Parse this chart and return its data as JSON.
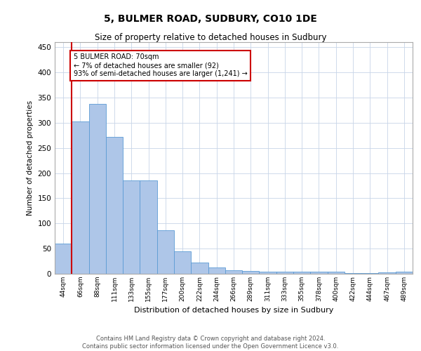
{
  "title": "5, BULMER ROAD, SUDBURY, CO10 1DE",
  "subtitle": "Size of property relative to detached houses in Sudbury",
  "xlabel": "Distribution of detached houses by size in Sudbury",
  "ylabel": "Number of detached properties",
  "categories": [
    "44sqm",
    "66sqm",
    "88sqm",
    "111sqm",
    "133sqm",
    "155sqm",
    "177sqm",
    "200sqm",
    "222sqm",
    "244sqm",
    "266sqm",
    "289sqm",
    "311sqm",
    "333sqm",
    "355sqm",
    "378sqm",
    "400sqm",
    "422sqm",
    "444sqm",
    "467sqm",
    "489sqm"
  ],
  "values": [
    60,
    302,
    338,
    272,
    185,
    185,
    87,
    45,
    22,
    12,
    7,
    5,
    4,
    4,
    4,
    4,
    4,
    1,
    1,
    3,
    4
  ],
  "bar_color": "#aec6e8",
  "bar_edge_color": "#5b9bd5",
  "red_line_index": 1,
  "annotation_line1": "5 BULMER ROAD: 70sqm",
  "annotation_line2": "← 7% of detached houses are smaller (92)",
  "annotation_line3": "93% of semi-detached houses are larger (1,241) →",
  "annotation_box_color": "#ffffff",
  "annotation_box_edge": "#cc0000",
  "ylim": [
    0,
    460
  ],
  "yticks": [
    0,
    50,
    100,
    150,
    200,
    250,
    300,
    350,
    400,
    450
  ],
  "footer1": "Contains HM Land Registry data © Crown copyright and database right 2024.",
  "footer2": "Contains public sector information licensed under the Open Government Licence v3.0.",
  "background_color": "#ffffff",
  "grid_color": "#c8d4e8"
}
